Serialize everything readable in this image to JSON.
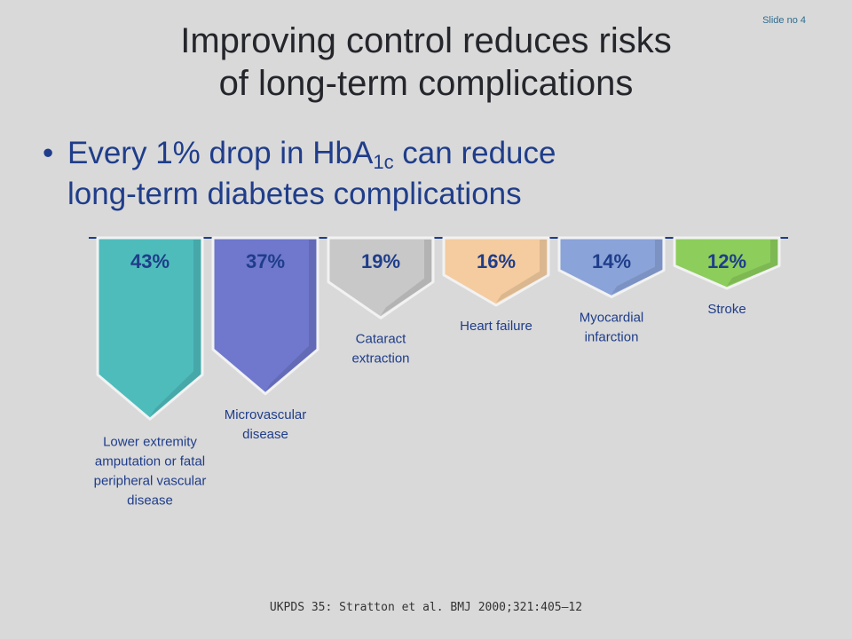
{
  "slide_number": "Slide no 4",
  "title_lines": [
    "Improving control reduces risks",
    "of long-term complications"
  ],
  "bullet": {
    "line1_prefix": "Every 1% drop in HbA",
    "line1_sub": "1c",
    "line1_suffix": " can reduce",
    "line2": "long-term diabetes complications"
  },
  "chart_data": {
    "type": "bar",
    "orientation": "downward",
    "unit": "%",
    "categories": [
      "Lower extremity amputation or fatal peripheral vascular disease",
      "Microvascular disease",
      "Cataract extraction",
      "Heart failure",
      "Myocardial infarction",
      "Stroke"
    ],
    "category_label_lines": [
      [
        "Lower extremity",
        "amputation or fatal",
        "peripheral vascular",
        "disease"
      ],
      [
        "Microvascular",
        "disease"
      ],
      [
        "Cataract",
        "extraction"
      ],
      [
        "Heart failure"
      ],
      [
        "Myocardial",
        "infarction"
      ],
      [
        "Stroke"
      ]
    ],
    "values": [
      43,
      37,
      19,
      16,
      14,
      12
    ],
    "value_labels": [
      "43%",
      "37%",
      "19%",
      "16%",
      "14%",
      "12%"
    ],
    "colors": [
      "#4fbcbc",
      "#6f78cc",
      "#c8c8c8",
      "#f4cca0",
      "#8aa3d8",
      "#8ccd5c"
    ],
    "value_label_color": "#1f3d8a",
    "baseline_color": "#1f3d8a"
  },
  "footer": "UKPDS 35: Stratton et al. BMJ 2000;321:405–12"
}
